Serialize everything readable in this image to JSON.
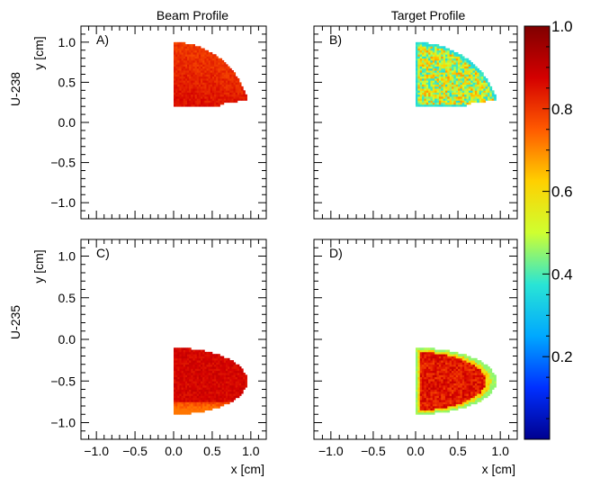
{
  "figure": {
    "column_titles": [
      "Beam Profile",
      "Target Profile"
    ],
    "row_labels": [
      "U-238",
      "U-235"
    ]
  },
  "chart_data": [
    {
      "type": "heatmap",
      "panel": "A)",
      "column": "Beam Profile",
      "row": "U-238",
      "xlabel": "",
      "ylabel": "y [cm]",
      "xlim": [
        -1.2,
        1.2
      ],
      "ylim": [
        -1.2,
        1.2
      ],
      "y_ticks": [
        "−1.0",
        "−0.5",
        "0.0",
        "0.5",
        "1.0"
      ],
      "x_ticks": [],
      "region": "quarter disk, x 0 to 1.0, y 0.2 to 1.0",
      "value_range": [
        0.76,
        0.92
      ]
    },
    {
      "type": "heatmap",
      "panel": "B)",
      "column": "Target Profile",
      "row": "U-238",
      "xlabel": "",
      "ylabel": "",
      "xlim": [
        -1.2,
        1.2
      ],
      "ylim": [
        -1.2,
        1.2
      ],
      "y_ticks": [],
      "x_ticks": [],
      "region": "quarter disk, x 0 to 1.0, y 0.2 to 1.0",
      "value_range": [
        0.35,
        0.7
      ]
    },
    {
      "type": "heatmap",
      "panel": "C)",
      "column": "Beam Profile",
      "row": "U-235",
      "xlabel": "x [cm]",
      "ylabel": "y [cm]",
      "xlim": [
        -1.2,
        1.2
      ],
      "ylim": [
        -1.2,
        1.2
      ],
      "y_ticks": [
        "−1.0",
        "−0.5",
        "0.0",
        "0.5",
        "1.0"
      ],
      "x_ticks": [
        "−1.0",
        "−0.5",
        "0.0",
        "0.5",
        "1.0"
      ],
      "region": "half disk, x 0 to 0.95, y -0.9 to -0.1",
      "value_range": [
        0.72,
        0.93
      ]
    },
    {
      "type": "heatmap",
      "panel": "D)",
      "column": "Target Profile",
      "row": "U-235",
      "xlabel": "x [cm]",
      "ylabel": "",
      "xlim": [
        -1.2,
        1.2
      ],
      "ylim": [
        -1.2,
        1.2
      ],
      "y_ticks": [],
      "x_ticks": [
        "−1.0",
        "−0.5",
        "0.0",
        "0.5",
        "1.0"
      ],
      "region": "half disk, x 0 to 0.95, y -0.9 to -0.1",
      "value_range": [
        0.45,
        0.92
      ]
    }
  ],
  "colorbar": {
    "range": [
      0.0,
      1.0
    ],
    "ticks": [
      "1.0",
      "0.8",
      "0.6",
      "0.4",
      "0.2"
    ],
    "colors": [
      "#00008f",
      "#0030ff",
      "#00a8ff",
      "#29e5d5",
      "#cfff30",
      "#ffd000",
      "#ff5a00",
      "#d40000",
      "#800000"
    ]
  }
}
